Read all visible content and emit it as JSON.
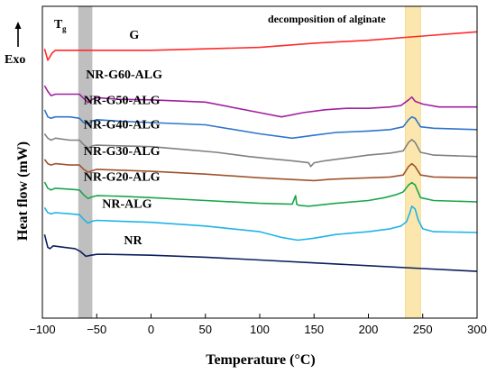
{
  "chart_data": {
    "type": "line",
    "title": "",
    "xlabel": "Temperature (°C)",
    "ylabel": "Heat flow (mW)",
    "xlim": [
      -100,
      300
    ],
    "x_ticks": [
      -100,
      -50,
      0,
      50,
      100,
      150,
      200,
      250,
      300
    ],
    "y_ticks": [],
    "grid": false,
    "legend": "none (labels placed next to curves)",
    "exo_label": "Exo",
    "tg_label": "T",
    "tg_subscript": "g",
    "tg_band": {
      "x": [
        -67,
        -54
      ],
      "color": "#a9a9a9"
    },
    "decomp_band": {
      "x": [
        234,
        248
      ],
      "color": "#fbe3a0",
      "label": "decomposition of alginate"
    },
    "curve_offset_units": "arbitrary (curves vertically shifted)",
    "series": [
      {
        "name": "G",
        "color": "#ff2a2a",
        "x": [
          -98,
          -95,
          -91,
          -88,
          -80,
          -70,
          -60,
          -30,
          0,
          50,
          100,
          150,
          200,
          250,
          300
        ],
        "y": [
          9.5,
          9.1,
          9.35,
          9.45,
          9.45,
          9.45,
          9.45,
          9.45,
          9.45,
          9.5,
          9.55,
          9.7,
          9.8,
          9.95,
          10.1
        ]
      },
      {
        "name": "NR-G60-ALG",
        "color": "#a020a0",
        "x": [
          -98,
          -95,
          -92,
          -88,
          -75,
          -66,
          -62,
          -58,
          -54,
          -50,
          -30,
          0,
          50,
          100,
          120,
          140,
          160,
          180,
          200,
          220,
          230,
          237,
          240,
          243,
          250,
          265,
          300
        ],
        "y": [
          8.2,
          8.0,
          7.85,
          7.9,
          7.9,
          7.9,
          7.75,
          7.6,
          7.72,
          7.78,
          7.72,
          7.7,
          7.62,
          7.25,
          7.1,
          7.25,
          7.35,
          7.4,
          7.4,
          7.45,
          7.5,
          7.7,
          7.8,
          7.65,
          7.55,
          7.45,
          7.45
        ]
      },
      {
        "name": "NR-G50-ALG",
        "color": "#2e75c9",
        "x": [
          -98,
          -95,
          -92,
          -88,
          -75,
          -66,
          -62,
          -58,
          -54,
          -50,
          -30,
          0,
          50,
          100,
          130,
          150,
          170,
          200,
          220,
          232,
          237,
          240,
          243,
          248,
          260,
          300
        ],
        "y": [
          7.35,
          7.1,
          7.05,
          7.1,
          7.1,
          7.05,
          6.9,
          6.85,
          6.95,
          7.0,
          6.95,
          6.9,
          6.82,
          6.5,
          6.35,
          6.45,
          6.55,
          6.6,
          6.65,
          6.75,
          7.0,
          7.1,
          7.05,
          6.75,
          6.7,
          6.65
        ]
      },
      {
        "name": "NR-G40-ALG",
        "color": "#808080",
        "x": [
          -98,
          -95,
          -92,
          -88,
          -75,
          -66,
          -62,
          -58,
          -54,
          -50,
          -30,
          0,
          30,
          60,
          90,
          110,
          130,
          145,
          147,
          150,
          160,
          180,
          200,
          220,
          232,
          237,
          240,
          243,
          248,
          260,
          300
        ],
        "y": [
          6.5,
          6.35,
          6.28,
          6.35,
          6.28,
          6.28,
          6.12,
          6.0,
          6.08,
          6.1,
          6.08,
          6.05,
          5.95,
          5.85,
          5.7,
          5.62,
          5.55,
          5.48,
          5.35,
          5.48,
          5.55,
          5.65,
          5.75,
          5.82,
          5.9,
          6.2,
          6.3,
          6.2,
          5.85,
          5.75,
          5.7
        ]
      },
      {
        "name": "NR-G30-ALG",
        "color": "#a0522d",
        "x": [
          -98,
          -95,
          -92,
          -88,
          -75,
          -66,
          -62,
          -58,
          -54,
          -50,
          -30,
          0,
          50,
          100,
          150,
          165,
          180,
          200,
          220,
          232,
          237,
          240,
          243,
          248,
          260,
          300
        ],
        "y": [
          5.6,
          5.45,
          5.4,
          5.45,
          5.4,
          5.4,
          5.25,
          5.15,
          5.2,
          5.25,
          5.22,
          5.18,
          5.08,
          4.95,
          4.85,
          4.9,
          4.92,
          4.95,
          4.98,
          5.05,
          5.35,
          5.45,
          5.35,
          5.05,
          4.98,
          4.95
        ]
      },
      {
        "name": "NR-G20-ALG",
        "color": "#1aa64a",
        "x": [
          -98,
          -95,
          -92,
          -88,
          -75,
          -66,
          -62,
          -58,
          -54,
          -50,
          -30,
          0,
          50,
          100,
          130,
          133,
          134,
          136,
          145,
          170,
          200,
          215,
          225,
          232,
          235,
          237,
          240,
          243,
          248,
          260,
          300
        ],
        "y": [
          4.8,
          4.58,
          4.52,
          4.58,
          4.55,
          4.52,
          4.35,
          4.22,
          4.28,
          4.32,
          4.3,
          4.25,
          4.15,
          4.05,
          4.02,
          4.32,
          4.02,
          3.98,
          3.95,
          4.05,
          4.15,
          4.25,
          4.35,
          4.45,
          4.6,
          4.7,
          4.78,
          4.7,
          4.25,
          4.15,
          4.1
        ]
      },
      {
        "name": "NR-ALG",
        "color": "#1fb4e6",
        "x": [
          -98,
          -95,
          -92,
          -88,
          -75,
          -66,
          -62,
          -58,
          -54,
          -50,
          -30,
          0,
          50,
          100,
          120,
          135,
          150,
          170,
          200,
          220,
          230,
          235,
          238,
          240,
          243,
          246,
          250,
          260,
          300
        ],
        "y": [
          3.9,
          3.72,
          3.68,
          3.72,
          3.68,
          3.65,
          3.48,
          3.35,
          3.42,
          3.45,
          3.42,
          3.38,
          3.25,
          3.05,
          2.85,
          2.75,
          2.82,
          2.95,
          3.05,
          3.15,
          3.25,
          3.4,
          3.7,
          3.95,
          3.85,
          3.45,
          3.15,
          3.05,
          3.02
        ]
      },
      {
        "name": "NR",
        "color": "#0d1f5c",
        "x": [
          -98,
          -95,
          -93,
          -90,
          -80,
          -70,
          -65,
          -60,
          -55,
          -50,
          -40,
          0,
          50,
          100,
          150,
          200,
          250,
          300
        ],
        "y": [
          2.95,
          2.5,
          2.45,
          2.55,
          2.5,
          2.45,
          2.35,
          2.18,
          2.22,
          2.25,
          2.25,
          2.22,
          2.15,
          2.05,
          1.95,
          1.85,
          1.75,
          1.65
        ]
      }
    ],
    "curve_label_anchor_x": [
      {
        "name": "G",
        "x": -20,
        "y": 9.85
      },
      {
        "name": "NR-G60-ALG",
        "x": -60,
        "y": 8.45
      },
      {
        "name": "NR-G50-ALG",
        "x": -62,
        "y": 7.55
      },
      {
        "name": "NR-G40-ALG",
        "x": -62,
        "y": 6.7
      },
      {
        "name": "NR-G30-ALG",
        "x": -62,
        "y": 5.75
      },
      {
        "name": "NR-G20-ALG",
        "x": -62,
        "y": 4.85
      },
      {
        "name": "NR-ALG",
        "x": -45,
        "y": 3.9
      },
      {
        "name": "NR",
        "x": -25,
        "y": 2.6
      }
    ],
    "ylim": [
      0,
      11
    ]
  }
}
